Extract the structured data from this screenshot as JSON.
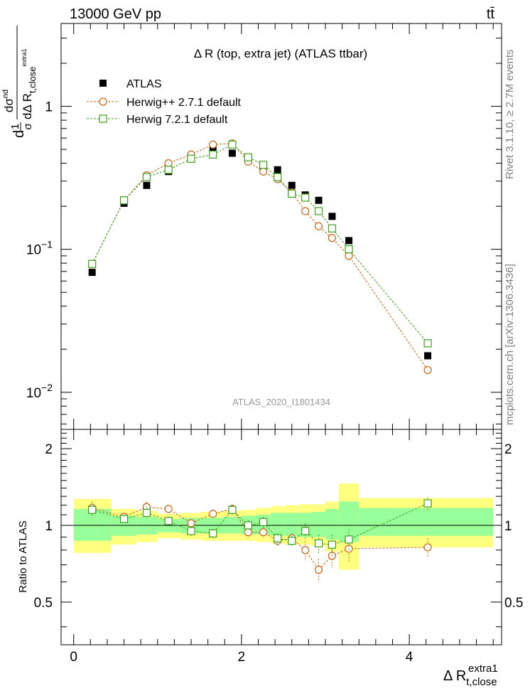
{
  "header": {
    "energy_label": "13000 GeV pp",
    "process_label": "tt̄"
  },
  "side_labels": {
    "rivet": "Rivet 3.1.10, ≥ 2.7M events",
    "mcplots": "mcplots.cern.ch [arXiv:1306.3436]"
  },
  "chart_data": [
    {
      "type": "scatter",
      "role": "main",
      "title": "Δ R (top, extra jet) (ATLAS ttbar)",
      "watermark": "ATLAS_2020_I1801434",
      "ylabel": "dσ/dΔ R t,close extra1 normalized",
      "ylabel_parts": {
        "pre": "d",
        "one": "1",
        "sigma": "σ",
        "sigma_sup": "nd",
        "delta": "dΔ R",
        "sub": "t,close",
        "subsup": "extra1"
      },
      "yscale": "log",
      "ylim": [
        0.0055,
        3.8
      ],
      "xlim": [
        -0.15,
        5.1
      ],
      "yticks": [
        {
          "v": 0.01,
          "b": "10",
          "e": "−2"
        },
        {
          "v": 0.1,
          "b": "10",
          "e": "−1"
        },
        {
          "v": 1,
          "b": "1",
          "e": ""
        }
      ],
      "legend_position": "top-left",
      "legend": [
        "ATLAS",
        "Herwig++ 2.7.1 default",
        "Herwig 7.2.1 default"
      ],
      "x": [
        0.22,
        0.6,
        0.87,
        1.13,
        1.4,
        1.66,
        1.89,
        2.08,
        2.26,
        2.43,
        2.6,
        2.76,
        2.92,
        3.08,
        3.28,
        4.22
      ],
      "series": [
        {
          "name": "ATLAS",
          "color": "#000000",
          "marker": "square-filled",
          "values": [
            0.069,
            0.21,
            0.28,
            0.35,
            0.45,
            0.5,
            0.47,
            0.44,
            0.37,
            0.36,
            0.28,
            0.24,
            0.22,
            0.17,
            0.115,
            0.018
          ]
        },
        {
          "name": "Herwig++ 2.7.1 default",
          "color": "#c2651b",
          "marker": "circle-open",
          "values": [
            0.079,
            0.22,
            0.33,
            0.4,
            0.46,
            0.54,
            0.55,
            0.41,
            0.35,
            0.31,
            0.25,
            0.185,
            0.145,
            0.12,
            0.09,
            0.0143
          ]
        },
        {
          "name": "Herwig 7.2.1 default",
          "color": "#3f9b1d",
          "marker": "square-open",
          "values": [
            0.079,
            0.22,
            0.32,
            0.36,
            0.43,
            0.46,
            0.54,
            0.44,
            0.39,
            0.32,
            0.245,
            0.23,
            0.185,
            0.14,
            0.1,
            0.022
          ]
        }
      ]
    },
    {
      "type": "scatter",
      "role": "ratio",
      "ylabel": "Ratio to ATLAS",
      "xlabel": "Δ R t,close extra1",
      "xlabel_parts": {
        "main": "Δ R",
        "sub": "t,close",
        "sup": "extra1"
      },
      "ylim": [
        0.34,
        2.38
      ],
      "xlim": [
        -0.15,
        5.1
      ],
      "yticks": [
        0.5,
        1,
        2
      ],
      "xticks": [
        0,
        2,
        4
      ],
      "band_colors": {
        "outer": "#ffff80",
        "inner": "#99ff99"
      },
      "bands": [
        {
          "x0": 0.0,
          "x1": 0.45,
          "outer": [
            0.78,
            1.27
          ],
          "inner": [
            0.87,
            1.16
          ]
        },
        {
          "x0": 0.45,
          "x1": 0.75,
          "outer": [
            0.84,
            1.16
          ],
          "inner": [
            0.91,
            1.09
          ]
        },
        {
          "x0": 0.75,
          "x1": 1.0,
          "outer": [
            0.86,
            1.14
          ],
          "inner": [
            0.92,
            1.08
          ]
        },
        {
          "x0": 1.0,
          "x1": 1.27,
          "outer": [
            0.89,
            1.11
          ],
          "inner": [
            0.94,
            1.06
          ]
        },
        {
          "x0": 1.27,
          "x1": 1.52,
          "outer": [
            0.88,
            1.12
          ],
          "inner": [
            0.93,
            1.07
          ]
        },
        {
          "x0": 1.52,
          "x1": 1.78,
          "outer": [
            0.87,
            1.13
          ],
          "inner": [
            0.93,
            1.07
          ]
        },
        {
          "x0": 1.78,
          "x1": 2.0,
          "outer": [
            0.87,
            1.14
          ],
          "inner": [
            0.93,
            1.08
          ]
        },
        {
          "x0": 2.0,
          "x1": 2.17,
          "outer": [
            0.87,
            1.15
          ],
          "inner": [
            0.92,
            1.09
          ]
        },
        {
          "x0": 2.17,
          "x1": 2.35,
          "outer": [
            0.86,
            1.17
          ],
          "inner": [
            0.92,
            1.1
          ]
        },
        {
          "x0": 2.35,
          "x1": 2.52,
          "outer": [
            0.85,
            1.19
          ],
          "inner": [
            0.91,
            1.12
          ]
        },
        {
          "x0": 2.52,
          "x1": 2.68,
          "outer": [
            0.84,
            1.2
          ],
          "inner": [
            0.91,
            1.12
          ]
        },
        {
          "x0": 2.68,
          "x1": 2.84,
          "outer": [
            0.84,
            1.21
          ],
          "inner": [
            0.9,
            1.12
          ]
        },
        {
          "x0": 2.84,
          "x1": 3.0,
          "outer": [
            0.83,
            1.21
          ],
          "inner": [
            0.9,
            1.13
          ]
        },
        {
          "x0": 3.0,
          "x1": 3.16,
          "outer": [
            0.79,
            1.24
          ],
          "inner": [
            0.88,
            1.16
          ]
        },
        {
          "x0": 3.16,
          "x1": 3.4,
          "outer": [
            0.67,
            1.46
          ],
          "inner": [
            0.86,
            1.24
          ]
        },
        {
          "x0": 3.4,
          "x1": 5.0,
          "outer": [
            0.82,
            1.28
          ],
          "inner": [
            0.91,
            1.17
          ]
        }
      ],
      "x": [
        0.22,
        0.6,
        0.87,
        1.13,
        1.4,
        1.66,
        1.89,
        2.08,
        2.26,
        2.43,
        2.6,
        2.76,
        2.92,
        3.08,
        3.28,
        4.22
      ],
      "series": [
        {
          "name": "Herwig++ 2.7.1 default",
          "color": "#c2651b",
          "marker": "circle-open",
          "values": [
            1.17,
            1.08,
            1.18,
            1.16,
            1.02,
            1.11,
            1.16,
            0.94,
            0.94,
            0.87,
            0.89,
            0.8,
            0.67,
            0.76,
            0.81,
            0.82
          ],
          "err": [
            0.07,
            0.04,
            0.06,
            0.04,
            0.04,
            0.04,
            0.05,
            0.05,
            0.05,
            0.04,
            0.04,
            0.07,
            0.07,
            0.08,
            0.09,
            0.07
          ]
        },
        {
          "name": "Herwig 7.2.1 default",
          "color": "#3f9b1d",
          "marker": "square-open",
          "values": [
            1.15,
            1.06,
            1.12,
            1.04,
            0.95,
            0.93,
            1.15,
            1.0,
            1.03,
            0.89,
            0.87,
            0.95,
            0.85,
            0.84,
            0.88,
            1.22
          ],
          "err": [
            0.07,
            0.04,
            0.06,
            0.04,
            0.04,
            0.04,
            0.05,
            0.05,
            0.05,
            0.04,
            0.04,
            0.07,
            0.07,
            0.08,
            0.09,
            0.07
          ]
        }
      ]
    }
  ]
}
